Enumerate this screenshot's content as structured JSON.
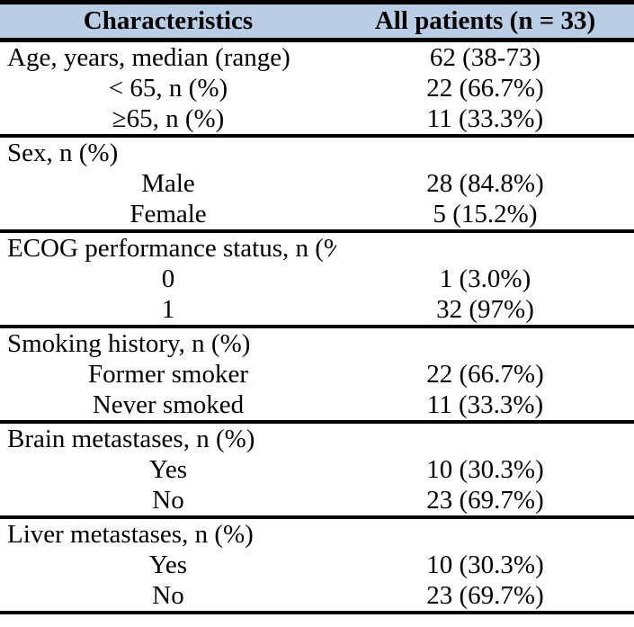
{
  "table": {
    "header": {
      "col1": "Characteristics",
      "col2": "All patients (n = 33)"
    },
    "rows": [
      {
        "label": "Age, years, median (range)",
        "value": "62 (38-73)"
      },
      {
        "label": "< 65, n (%)",
        "value": "22 (66.7%)"
      },
      {
        "label": "≥65, n (%)",
        "value": "11 (33.3%)"
      },
      {
        "label": "Sex, n (%)",
        "value": ""
      },
      {
        "label": "Male",
        "value": "28 (84.8%)"
      },
      {
        "label": "Female",
        "value": "5 (15.2%)"
      },
      {
        "label": "ECOG performance status, n (%)",
        "value": ""
      },
      {
        "label": "0",
        "value": "1 (3.0%)"
      },
      {
        "label": "1",
        "value": "32 (97%)"
      },
      {
        "label": "Smoking history, n (%)",
        "value": ""
      },
      {
        "label": "Former smoker",
        "value": "22 (66.7%)"
      },
      {
        "label": "Never smoked",
        "value": "11 (33.3%)"
      },
      {
        "label": "Brain metastases, n (%)",
        "value": ""
      },
      {
        "label": "Yes",
        "value": "10 (30.3%)"
      },
      {
        "label": "No",
        "value": "23 (69.7%)"
      },
      {
        "label": "Liver metastases, n (%)",
        "value": ""
      },
      {
        "label": "Yes",
        "value": "10 (30.3%)"
      },
      {
        "label": "No",
        "value": "23 (69.7%)"
      }
    ],
    "colors": {
      "header_bg": "#b9cde5",
      "border": "#000000",
      "text": "#000000"
    }
  }
}
